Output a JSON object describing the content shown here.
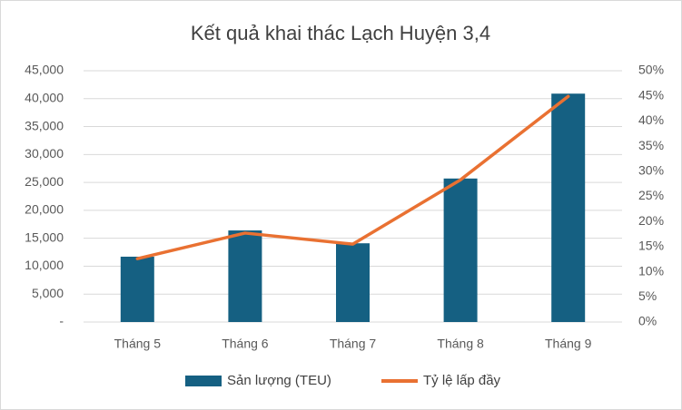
{
  "chart_data": {
    "type": "bar",
    "title": "Kết quả khai thác Lạch Huyện 3,4",
    "categories": [
      "Tháng 5",
      "Tháng 6",
      "Tháng 7",
      "Tháng 8",
      "Tháng 9"
    ],
    "series": [
      {
        "name": "Sản lượng (TEU)",
        "type": "bar",
        "color": "#156082",
        "values": [
          11700,
          16400,
          14100,
          25700,
          40900
        ]
      },
      {
        "name": "Tỷ lệ lấp đầy",
        "type": "line",
        "axis": "y2",
        "color": "#e97132",
        "values": [
          12.6,
          17.7,
          15.5,
          28.3,
          44.9
        ]
      }
    ],
    "ylim": [
      0,
      45000
    ],
    "yticks": [
      {
        "value": 0,
        "label": "-"
      },
      {
        "value": 5000,
        "label": "5,000"
      },
      {
        "value": 10000,
        "label": "10,000"
      },
      {
        "value": 15000,
        "label": "15,000"
      },
      {
        "value": 20000,
        "label": "20,000"
      },
      {
        "value": 25000,
        "label": "25,000"
      },
      {
        "value": 30000,
        "label": "30,000"
      },
      {
        "value": 35000,
        "label": "35,000"
      },
      {
        "value": 40000,
        "label": "40,000"
      },
      {
        "value": 45000,
        "label": "45,000"
      }
    ],
    "y2lim": [
      0,
      50
    ],
    "y2ticks": [
      {
        "value": 0,
        "label": "0%"
      },
      {
        "value": 5,
        "label": "5%"
      },
      {
        "value": 10,
        "label": "10%"
      },
      {
        "value": 15,
        "label": "15%"
      },
      {
        "value": 20,
        "label": "20%"
      },
      {
        "value": 25,
        "label": "25%"
      },
      {
        "value": 30,
        "label": "30%"
      },
      {
        "value": 35,
        "label": "35%"
      },
      {
        "value": 40,
        "label": "40%"
      },
      {
        "value": 45,
        "label": "45%"
      },
      {
        "value": 50,
        "label": "50%"
      }
    ],
    "grid": true,
    "legend": "bottom"
  }
}
